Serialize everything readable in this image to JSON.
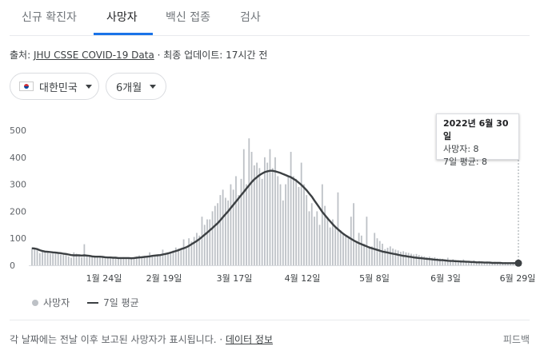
{
  "tabs": [
    {
      "label": "신규 확진자"
    },
    {
      "label": "사망자"
    },
    {
      "label": "백신 접종"
    },
    {
      "label": "검사"
    }
  ],
  "source": {
    "prefix": "출처: ",
    "link": "JHU CSSE COVID-19 Data",
    "suffix": " · 최종 업데이트: 17시간 전"
  },
  "filters": {
    "country": "대한민국",
    "period": "6개월"
  },
  "tooltip": {
    "date": "2022년 6월 30일",
    "deaths": "사망자: 8",
    "avg": "7일 평균: 8"
  },
  "legend": {
    "deaths": "사망자",
    "avg": "7일 평균"
  },
  "footer": {
    "text": "각 날짜에는 전날 이후 보고된 사망자가 표시됩니다. · ",
    "link": "데이터 정보",
    "feedback": "피드백"
  },
  "colors": {
    "accent": "#1a73e8",
    "bar": "#bdc1c6",
    "line": "#3c4043"
  },
  "chart_data": {
    "type": "bar",
    "ylim": [
      0,
      500
    ],
    "yticks": [
      0,
      100,
      200,
      300,
      400,
      500
    ],
    "xticks": [
      "1월 24일",
      "2월 19일",
      "3월 17일",
      "4월 12일",
      "5월 8일",
      "6월 3일",
      "6월 29일"
    ],
    "series": [
      {
        "name": "사망자",
        "type": "bar",
        "values": [
          66,
          63,
          58,
          45,
          50,
          54,
          48,
          43,
          44,
          44,
          46,
          40,
          38,
          38,
          33,
          28,
          48,
          43,
          34,
          30,
          78,
          38,
          33,
          32,
          36,
          33,
          30,
          28,
          26,
          26,
          26,
          27,
          28,
          24,
          27,
          30,
          28,
          26,
          25,
          30,
          32,
          37,
          34,
          32,
          36,
          48,
          32,
          36,
          38,
          40,
          58,
          44,
          48,
          50,
          55,
          66,
          62,
          58,
          96,
          62,
          100,
          88,
          105,
          120,
          110,
          180,
          150,
          170,
          170,
          200,
          220,
          230,
          260,
          280,
          250,
          240,
          300,
          280,
          330,
          260,
          320,
          430,
          300,
          470,
          420,
          370,
          380,
          360,
          320,
          400,
          380,
          430,
          360,
          400,
          330,
          300,
          240,
          300,
          330,
          420,
          330,
          320,
          290,
          380,
          300,
          260,
          200,
          230,
          180,
          200,
          150,
          300,
          220,
          180,
          140,
          170,
          140,
          270,
          130,
          120,
          110,
          100,
          180,
          230,
          90,
          120,
          110,
          80,
          180,
          70,
          70,
          120,
          100,
          90,
          80,
          60,
          65,
          70,
          62,
          58,
          55,
          50,
          52,
          48,
          46,
          43,
          40,
          42,
          38,
          35,
          33,
          30,
          32,
          28,
          30,
          26,
          25,
          24,
          22,
          28,
          20,
          22,
          20,
          18,
          19,
          22,
          17,
          15,
          16,
          18,
          14,
          16,
          13,
          12,
          14,
          11,
          12,
          13,
          10,
          11,
          9,
          12,
          10,
          9,
          8,
          10,
          8
        ]
      },
      {
        "name": "7일 평균",
        "type": "line",
        "values": [
          63,
          62,
          60,
          56,
          53,
          51,
          50,
          49,
          48,
          47,
          46,
          45,
          43,
          42,
          40,
          38,
          37,
          37,
          37,
          36,
          37,
          36,
          35,
          33,
          32,
          32,
          32,
          31,
          30,
          29,
          29,
          28,
          28,
          27,
          27,
          27,
          27,
          27,
          26,
          27,
          28,
          29,
          30,
          31,
          32,
          33,
          35,
          36,
          37,
          38,
          40,
          42,
          44,
          47,
          50,
          53,
          56,
          60,
          63,
          67,
          72,
          78,
          84,
          90,
          97,
          105,
          113,
          121,
          130,
          138,
          147,
          156,
          167,
          178,
          189,
          200,
          212,
          224,
          236,
          248,
          260,
          272,
          284,
          296,
          308,
          318,
          326,
          334,
          340,
          345,
          348,
          350,
          350,
          348,
          345,
          342,
          338,
          334,
          330,
          326,
          320,
          314,
          306,
          298,
          288,
          278,
          266,
          254,
          240,
          226,
          212,
          198,
          186,
          174,
          163,
          152,
          142,
          133,
          125,
          117,
          110,
          104,
          98,
          92,
          87,
          82,
          78,
          74,
          70,
          66,
          63,
          60,
          57,
          54,
          51,
          49,
          47,
          45,
          43,
          41,
          39,
          37,
          35,
          34,
          32,
          31,
          29,
          28,
          27,
          26,
          25,
          24,
          23,
          22,
          21,
          20,
          19,
          19,
          18,
          17,
          16,
          16,
          15,
          15,
          14,
          14,
          13,
          13,
          12,
          12,
          11,
          11,
          11,
          10,
          10,
          10,
          9,
          9,
          9,
          9,
          8,
          8,
          8,
          8,
          8,
          8,
          8
        ]
      }
    ]
  }
}
